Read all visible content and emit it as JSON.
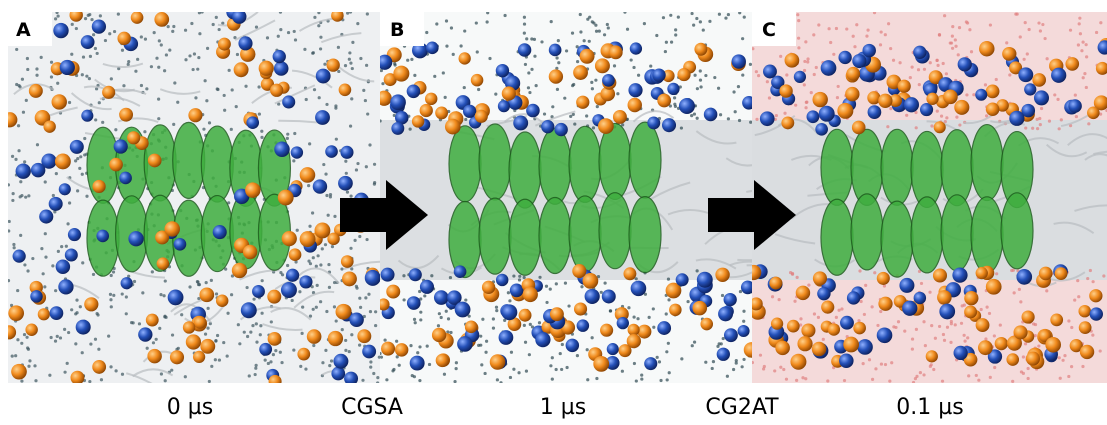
{
  "panels": [
    {
      "label": "A"
    },
    {
      "label": "B"
    },
    {
      "label": "C"
    }
  ],
  "captions": [
    "0 µs",
    "CGSA",
    "1 µs",
    "CG2AT",
    "0.1 µs"
  ]
}
